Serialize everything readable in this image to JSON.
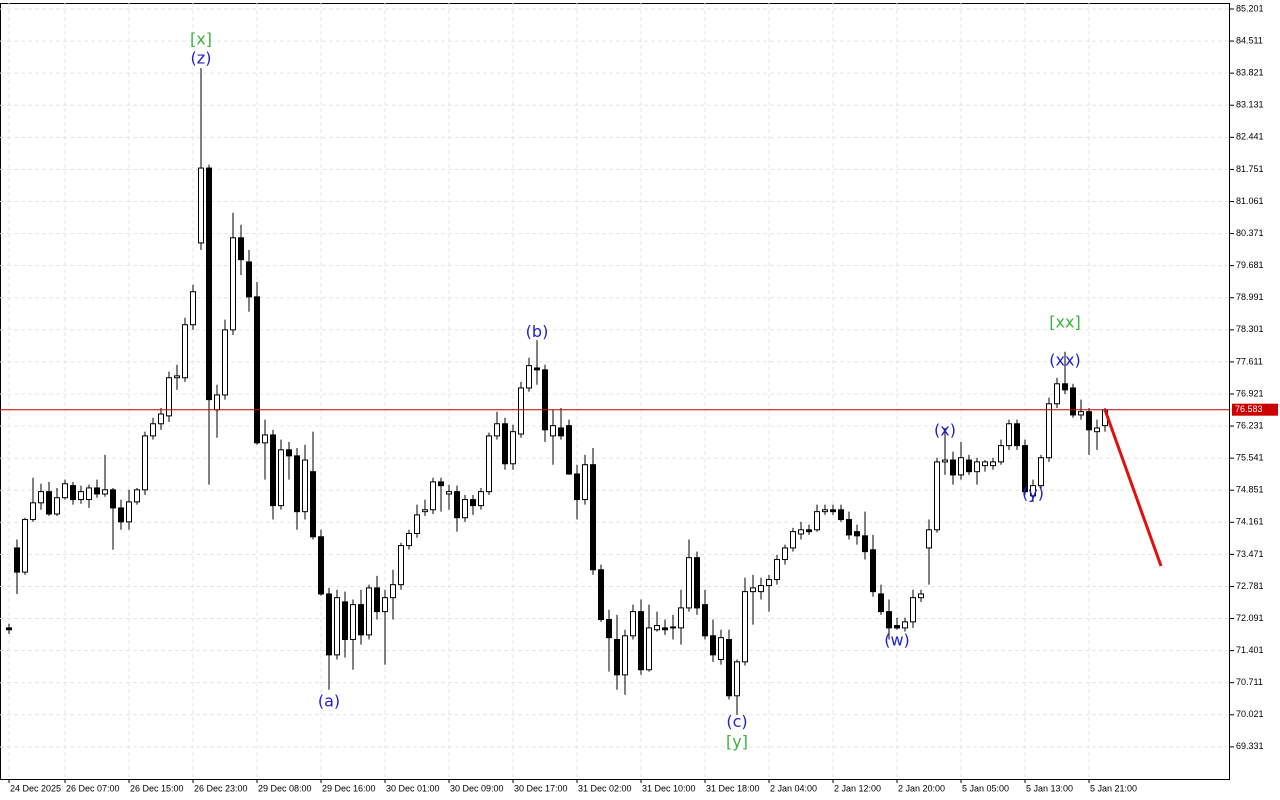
{
  "chart_data": {
    "type": "candlestick",
    "categories": [
      "24 Dec 2025",
      null,
      null,
      null,
      null,
      null,
      null,
      "26 Dec 07:00",
      null,
      null,
      null,
      null,
      null,
      null,
      null,
      "26 Dec 15:00",
      null,
      null,
      null,
      null,
      null,
      null,
      null,
      "26 Dec 23:00",
      null,
      null,
      null,
      null,
      null,
      null,
      null,
      "29 Dec 08:00",
      null,
      null,
      null,
      null,
      null,
      null,
      null,
      "29 Dec 16:00",
      null,
      null,
      null,
      null,
      null,
      null,
      null,
      "30 Dec 01:00",
      null,
      null,
      null,
      null,
      null,
      null,
      null,
      "30 Dec 09:00",
      null,
      null,
      null,
      null,
      null,
      null,
      null,
      "30 Dec 17:00",
      null,
      null,
      null,
      null,
      null,
      null,
      null,
      "31 Dec 02:00",
      null,
      null,
      null,
      null,
      null,
      null,
      null,
      "31 Dec 10:00",
      null,
      null,
      null,
      null,
      null,
      null,
      null,
      "31 Dec 18:00",
      null,
      null,
      null,
      null,
      null,
      null,
      null,
      "2 Jan 04:00",
      null,
      null,
      null,
      null,
      null,
      null,
      null,
      "2 Jan 12:00",
      null,
      null,
      null,
      null,
      null,
      null,
      null,
      "2 Jan 20:00",
      null,
      null,
      null,
      null,
      null,
      null,
      null,
      "5 Jan 05:00",
      null,
      null,
      null,
      null,
      null,
      null,
      null,
      "5 Jan 13:00",
      null,
      null,
      null,
      null,
      null,
      null,
      null,
      "5 Jan 21:00",
      null,
      null
    ],
    "open": [
      71.89,
      73.61,
      73.09,
      74.22,
      74.58,
      74.82,
      74.34,
      74.69,
      74.95,
      74.65,
      74.65,
      74.9,
      74.77,
      74.86,
      74.47,
      74.17,
      74.6,
      74.86,
      76.02,
      76.28,
      76.45,
      77.27,
      77.27,
      78.41,
      80.17,
      81.78,
      76.58,
      76.9,
      78.3,
      80.28,
      79.76,
      79.01,
      75.87,
      76.04,
      74.52,
      75.72,
      75.59,
      74.39,
      75.25,
      73.85,
      72.62,
      71.31,
      72.45,
      71.64,
      72.39,
      71.74,
      72.75,
      72.24,
      72.54,
      72.82,
      73.66,
      73.92,
      74.39,
      74.43,
      75.03,
      74.77,
      74.82,
      74.26,
      74.65,
      74.52,
      74.82,
      76.02,
      76.28,
      75.42,
      76.06,
      77.05,
      77.48,
      77.44,
      76.02,
      76.19,
      76.24,
      75.2,
      74.65,
      75.4,
      73.14,
      72.07,
      71.64,
      70.88,
      71.72,
      72.24,
      70.99,
      71.85,
      71.89,
      71.91,
      71.89,
      72.32,
      73.4,
      72.39,
      71.72,
      71.21,
      71.64,
      70.43,
      71.16,
      72.67,
      72.67,
      72.8,
      72.93,
      73.36,
      73.61,
      73.91,
      74.0,
      74.0,
      74.39,
      74.43,
      74.43,
      74.22,
      73.96,
      73.87,
      73.57,
      72.62,
      72.24,
      71.94,
      71.89,
      72.02,
      72.54,
      73.61,
      74.0,
      75.46,
      75.5,
      75.18,
      75.5,
      75.25,
      75.38,
      75.38,
      75.46,
      75.81,
      76.28,
      75.81,
      74.73,
      74.95,
      75.55,
      76.71,
      77.14,
      77.05,
      76.47,
      76.54,
      76.11,
      76.24
    ],
    "high": [
      71.98,
      73.79,
      74.26,
      75.12,
      74.99,
      75.03,
      74.9,
      75.08,
      75.03,
      74.95,
      74.97,
      75.08,
      75.61,
      74.9,
      74.65,
      74.86,
      74.9,
      76.11,
      76.41,
      76.62,
      77.4,
      77.55,
      78.56,
      79.27,
      83.93,
      81.85,
      77.12,
      78.52,
      80.82,
      80.56,
      80.02,
      79.33,
      76.37,
      76.15,
      75.94,
      75.89,
      75.76,
      75.83,
      76.11,
      74.0,
      72.75,
      72.71,
      72.67,
      72.5,
      72.71,
      72.82,
      73.01,
      72.71,
      73.14,
      73.72,
      74.0,
      74.54,
      74.65,
      75.12,
      75.12,
      74.97,
      74.95,
      74.75,
      74.75,
      74.9,
      76.09,
      76.54,
      76.41,
      76.26,
      77.18,
      77.7,
      78.08,
      77.55,
      76.58,
      76.62,
      76.37,
      75.4,
      75.61,
      75.76,
      73.25,
      72.28,
      72.17,
      71.85,
      72.39,
      72.5,
      72.39,
      72.24,
      72.07,
      72.17,
      72.71,
      73.79,
      73.53,
      72.71,
      72.07,
      71.85,
      71.85,
      71.21,
      72.97,
      73.03,
      72.97,
      73.03,
      73.46,
      73.68,
      74.04,
      74.17,
      74.11,
      74.54,
      74.54,
      74.54,
      74.54,
      74.39,
      74.11,
      74.39,
      73.89,
      72.82,
      72.5,
      72.11,
      72.11,
      72.71,
      72.71,
      74.22,
      75.55,
      76.19,
      75.68,
      75.89,
      75.61,
      75.55,
      75.5,
      75.55,
      75.94,
      76.37,
      76.37,
      75.94,
      75.08,
      75.61,
      76.84,
      77.27,
      77.83,
      77.14,
      76.8,
      76.62,
      76.37,
      76.62
    ],
    "low": [
      71.76,
      72.62,
      73.03,
      74.17,
      74.43,
      74.3,
      74.3,
      74.65,
      74.54,
      74.56,
      74.47,
      74.69,
      74.71,
      73.57,
      74.0,
      74.0,
      74.54,
      74.75,
      75.94,
      76.15,
      76.32,
      77.01,
      77.18,
      78.3,
      80.02,
      74.97,
      75.98,
      76.8,
      78.19,
      79.48,
      78.69,
      75.83,
      75.08,
      74.22,
      74.43,
      75.08,
      74.0,
      74.22,
      73.79,
      72.58,
      70.56,
      71.21,
      71.25,
      70.99,
      71.53,
      71.64,
      72.07,
      71.1,
      72.07,
      72.71,
      73.57,
      73.83,
      74.3,
      74.34,
      74.39,
      74.43,
      73.96,
      74.17,
      74.32,
      74.43,
      74.75,
      75.94,
      75.29,
      75.29,
      75.98,
      76.97,
      77.12,
      75.89,
      75.4,
      75.94,
      75.18,
      74.22,
      74.54,
      73.03,
      72.02,
      70.95,
      70.56,
      70.45,
      71.64,
      70.88,
      70.95,
      71.81,
      71.74,
      71.64,
      71.53,
      72.24,
      72.17,
      71.64,
      71.16,
      71.1,
      70.35,
      70.02,
      71.08,
      71.96,
      72.5,
      72.24,
      72.82,
      73.25,
      73.53,
      73.79,
      73.89,
      73.96,
      74.32,
      74.32,
      74.17,
      73.79,
      73.68,
      73.36,
      72.56,
      72.17,
      71.64,
      71.85,
      71.81,
      71.89,
      72.45,
      72.82,
      73.94,
      75.18,
      74.97,
      75.08,
      75.18,
      74.97,
      75.25,
      75.29,
      75.4,
      75.72,
      75.72,
      74.75,
      74.6,
      74.86,
      75.46,
      76.62,
      76.92,
      76.41,
      76.37,
      75.61,
      75.72,
      76.11
    ],
    "close": [
      71.85,
      73.09,
      74.22,
      74.58,
      74.82,
      74.34,
      74.69,
      74.99,
      74.65,
      74.82,
      74.9,
      74.77,
      74.86,
      74.47,
      74.17,
      74.6,
      74.86,
      76.02,
      76.28,
      76.49,
      77.27,
      77.31,
      78.41,
      79.12,
      81.78,
      76.8,
      76.9,
      78.3,
      80.28,
      79.81,
      79.01,
      75.87,
      76.04,
      74.52,
      75.72,
      75.59,
      74.39,
      75.5,
      73.85,
      72.62,
      71.31,
      72.54,
      71.64,
      72.39,
      71.74,
      72.75,
      72.24,
      72.54,
      72.82,
      73.66,
      73.92,
      74.32,
      74.43,
      75.03,
      74.95,
      74.82,
      74.26,
      74.65,
      74.52,
      74.82,
      76.02,
      76.28,
      75.42,
      76.11,
      77.05,
      77.53,
      77.44,
      76.15,
      76.24,
      76.02,
      75.2,
      74.65,
      75.4,
      73.14,
      72.07,
      71.68,
      70.88,
      71.72,
      72.24,
      70.99,
      71.89,
      71.94,
      71.85,
      71.89,
      72.32,
      73.4,
      72.32,
      71.72,
      71.31,
      71.68,
      70.43,
      71.16,
      72.67,
      72.75,
      72.8,
      72.93,
      73.36,
      73.61,
      73.96,
      74.0,
      73.96,
      74.39,
      74.43,
      74.39,
      74.22,
      73.89,
      73.87,
      73.53,
      72.67,
      72.24,
      71.89,
      71.89,
      72.02,
      72.54,
      72.62,
      74.0,
      75.46,
      75.5,
      75.18,
      75.55,
      75.25,
      75.46,
      75.46,
      75.46,
      75.81,
      76.28,
      75.81,
      74.82,
      74.95,
      75.55,
      76.71,
      77.14,
      77.01,
      76.47,
      76.54,
      76.15,
      76.19,
      76.58
    ],
    "up_color": "#ffffff",
    "down_color": "#000000",
    "ylim": [
      68.64,
      85.33
    ],
    "yticks": [
      85.201,
      84.511,
      83.821,
      83.131,
      82.441,
      81.751,
      81.061,
      80.371,
      79.681,
      78.991,
      78.301,
      77.611,
      76.921,
      76.231,
      75.541,
      74.851,
      74.161,
      73.471,
      72.781,
      72.091,
      71.401,
      70.711,
      70.021,
      69.331
    ],
    "grid": true,
    "current_price": 76.583,
    "current_price_color": "#cc0000",
    "forecast": {
      "color": "#e01010",
      "x": [
        137,
        144
      ],
      "values": [
        76.58,
        73.22
      ]
    },
    "annotations": [
      {
        "text": "[x]",
        "color": "#3cb43c",
        "x": 24,
        "y": 84.53
      },
      {
        "text": "(z)",
        "color": "#1e1ed2",
        "x": 24,
        "y": 84.13
      },
      {
        "text": "(a)",
        "color": "#1e1ed2",
        "x": 40,
        "y": 70.3
      },
      {
        "text": "(b)",
        "color": "#1e1ed2",
        "x": 66,
        "y": 78.24
      },
      {
        "text": "(c)",
        "color": "#1e1ed2",
        "x": 91,
        "y": 69.85
      },
      {
        "text": "[y]",
        "color": "#3cb43c",
        "x": 91,
        "y": 69.42
      },
      {
        "text": "(w)",
        "color": "#1e1ed2",
        "x": 111,
        "y": 71.61
      },
      {
        "text": "(x)",
        "color": "#1e1ed2",
        "x": 117,
        "y": 76.13
      },
      {
        "text": "(y)",
        "color": "#1e1ed2",
        "x": 128,
        "y": 74.77
      },
      {
        "text": "[xx]",
        "color": "#3cb43c",
        "x": 132,
        "y": 78.45
      },
      {
        "text": "(xx)",
        "color": "#1e1ed2",
        "x": 132,
        "y": 77.63
      }
    ]
  }
}
